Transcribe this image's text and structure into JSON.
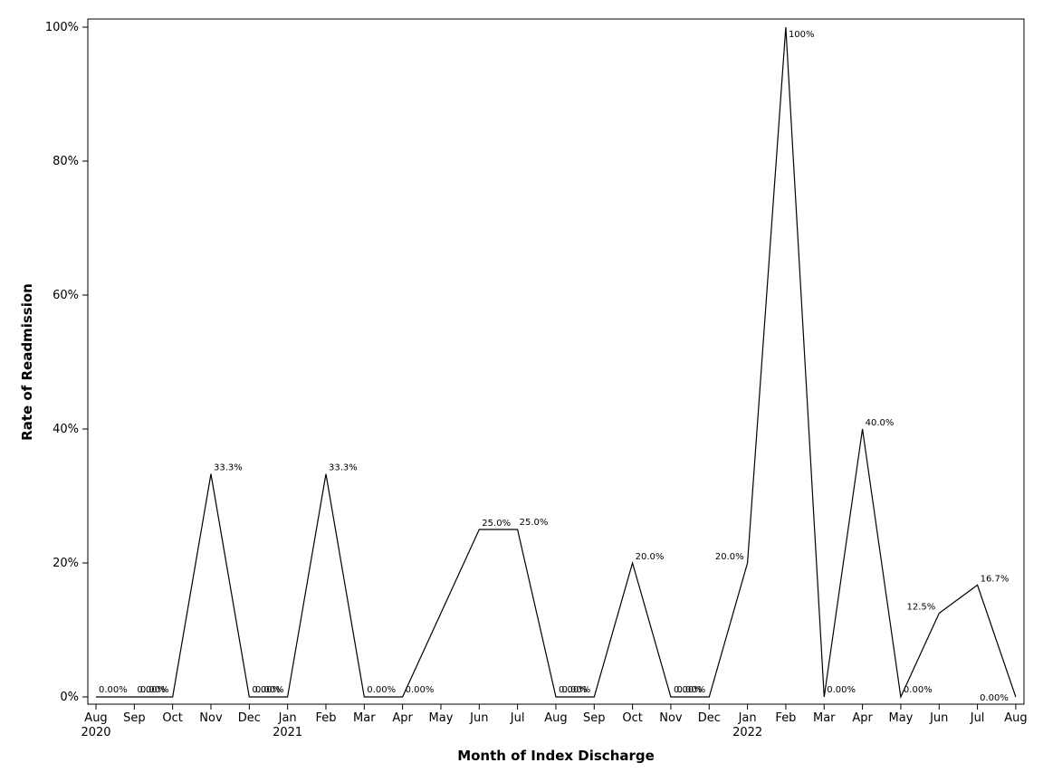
{
  "chart_data": {
    "type": "line",
    "title": "",
    "xlabel": "Month of Index Discharge",
    "ylabel": "Rate of Readmission",
    "ylim": [
      0,
      100
    ],
    "y_ticks": [
      "0%",
      "20%",
      "40%",
      "60%",
      "80%",
      "100%"
    ],
    "grid": false,
    "legend": "none",
    "x": [
      "Aug 2020",
      "Sep 2020",
      "Oct 2020",
      "Nov 2020",
      "Dec 2020",
      "Jan 2021",
      "Feb 2021",
      "Mar 2021",
      "Apr 2021",
      "May 2021",
      "Jun 2021",
      "Jul 2021",
      "Aug 2021",
      "Sep 2021",
      "Oct 2021",
      "Nov 2021",
      "Dec 2021",
      "Jan 2022",
      "Feb 2022",
      "Mar 2022",
      "Apr 2022",
      "May 2022",
      "Jun 2022",
      "Jul 2022",
      "Aug 2022"
    ],
    "x_tick_labels": [
      "Aug",
      "Sep",
      "Oct",
      "Nov",
      "Dec",
      "Jan",
      "Feb",
      "Mar",
      "Apr",
      "May",
      "Jun",
      "Jul",
      "Aug",
      "Sep",
      "Oct",
      "Nov",
      "Dec",
      "Jan",
      "Feb",
      "Mar",
      "Apr",
      "May",
      "Jun",
      "Jul",
      "Aug"
    ],
    "x_year_labels": [
      {
        "index": 0,
        "label": "2020"
      },
      {
        "index": 5,
        "label": "2021"
      },
      {
        "index": 17,
        "label": "2022"
      }
    ],
    "values": [
      0,
      0,
      0,
      33.3,
      0,
      0,
      33.3,
      0,
      0,
      null,
      25.0,
      25.0,
      0,
      0,
      20.0,
      0,
      0,
      20.0,
      100,
      0,
      40.0,
      0,
      12.5,
      16.7,
      0
    ],
    "data_labels": [
      "0.00%",
      "0.00%",
      "0.00%",
      "33.3%",
      "0.00%",
      "0.00%",
      "33.3%",
      "0.00%",
      "0.00%",
      "",
      "25.0%",
      "25.0%",
      "0.00%",
      "0.00%",
      "20.0%",
      "0.00%",
      "0.00%",
      "20.0%",
      "100%",
      "0.00%",
      "40.0%",
      "0.00%",
      "12.5%",
      "16.7%",
      "0.00%"
    ],
    "line_color": "#000000"
  }
}
